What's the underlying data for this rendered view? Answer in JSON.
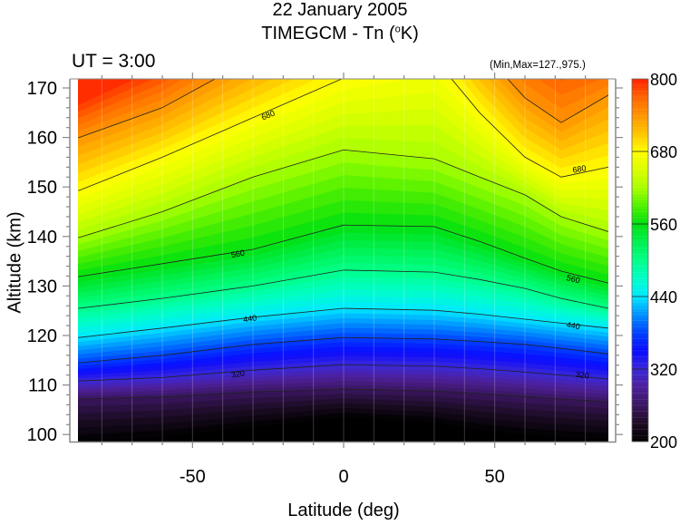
{
  "chart_data": {
    "type": "contour",
    "title": "22 January 2005",
    "subtitle_prefix": "TIMEGCM - Tn (",
    "subtitle_degree": "o",
    "subtitle_suffix": "K)",
    "ut_label": "UT =  3:00",
    "minmax_label": "(Min,Max=127.,975.)",
    "xlabel": "Latitude (deg)",
    "ylabel": "Altitude (km)",
    "xlim": [
      -90,
      90
    ],
    "ylim": [
      98.5,
      171.8
    ],
    "x_ticks": [
      -50,
      0,
      50
    ],
    "x_tick_labels": [
      "-50",
      "0",
      "50"
    ],
    "y_ticks": [
      100,
      110,
      120,
      130,
      140,
      150,
      160,
      170
    ],
    "y_tick_labels": [
      "100",
      "110",
      "120",
      "130",
      "140",
      "150",
      "160",
      "170"
    ],
    "colorbar": {
      "range": [
        200,
        800
      ],
      "ticks": [
        200,
        320,
        440,
        560,
        680,
        800
      ],
      "tick_labels": [
        "200",
        "320",
        "440",
        "560",
        "680",
        "800"
      ],
      "colors": {
        "200": "#000000",
        "230": "#1c0c24",
        "260": "#3a1660",
        "290": "#4e1f9a",
        "320": "#3a28d8",
        "350": "#0a0aff",
        "380": "#0040ff",
        "410": "#0090ff",
        "440": "#00e8ff",
        "470": "#00ffc8",
        "500": "#00ff88",
        "530": "#00f050",
        "560": "#00e010",
        "590": "#50f000",
        "620": "#a8ff00",
        "650": "#dcff00",
        "680": "#ffff00",
        "710": "#ffc400",
        "740": "#ff9400",
        "770": "#ff6400",
        "800": "#ff2200"
      }
    },
    "contour_labels": [
      "680",
      "680",
      "560",
      "560",
      "440",
      "440",
      "320",
      "320"
    ],
    "latitudes": [
      -87.5,
      -60,
      -30,
      0,
      30,
      45,
      60,
      72,
      87.5
    ],
    "levels": [
      {
        "value": 200,
        "altitude": [
          98.5,
          99.5,
          101.5,
          103.5,
          102.5,
          101,
          100,
          99.5,
          99
        ]
      },
      {
        "value": 260,
        "altitude": [
          107.2,
          107.6,
          108.6,
          109.2,
          108.8,
          108.3,
          107.7,
          107.2,
          106.6
        ]
      },
      {
        "value": 320,
        "altitude": [
          110.8,
          111.5,
          113,
          114.1,
          113.8,
          113.3,
          112.6,
          112,
          111.2
        ]
      },
      {
        "value": 380,
        "altitude": [
          114.5,
          116,
          118.2,
          119.6,
          119.3,
          118.8,
          118.2,
          117.4,
          116.3
        ]
      },
      {
        "value": 440,
        "altitude": [
          119.6,
          121.5,
          123.7,
          125.5,
          125.1,
          124.3,
          123.3,
          122.5,
          121.5
        ]
      },
      {
        "value": 500,
        "altitude": [
          125.5,
          127.5,
          130,
          133.2,
          132.8,
          131.3,
          129.5,
          127.5,
          125.5
        ]
      },
      {
        "value": 560,
        "altitude": [
          131.9,
          134.5,
          137.4,
          142.3,
          142,
          139,
          135.6,
          133,
          130.6
        ]
      },
      {
        "value": 620,
        "altitude": [
          139.8,
          145,
          152,
          157.5,
          155.7,
          152,
          148.4,
          144,
          141
        ]
      },
      {
        "value": 680,
        "altitude": [
          149.3,
          156,
          164,
          172,
          176,
          165,
          156,
          152,
          154
        ]
      },
      {
        "value": 740,
        "altitude": [
          160,
          166,
          176,
          186,
          192,
          178,
          168,
          163,
          168.5
        ]
      },
      {
        "value": 800,
        "altitude": [
          168,
          176,
          190,
          200,
          205,
          195,
          185,
          180,
          180
        ]
      }
    ]
  }
}
